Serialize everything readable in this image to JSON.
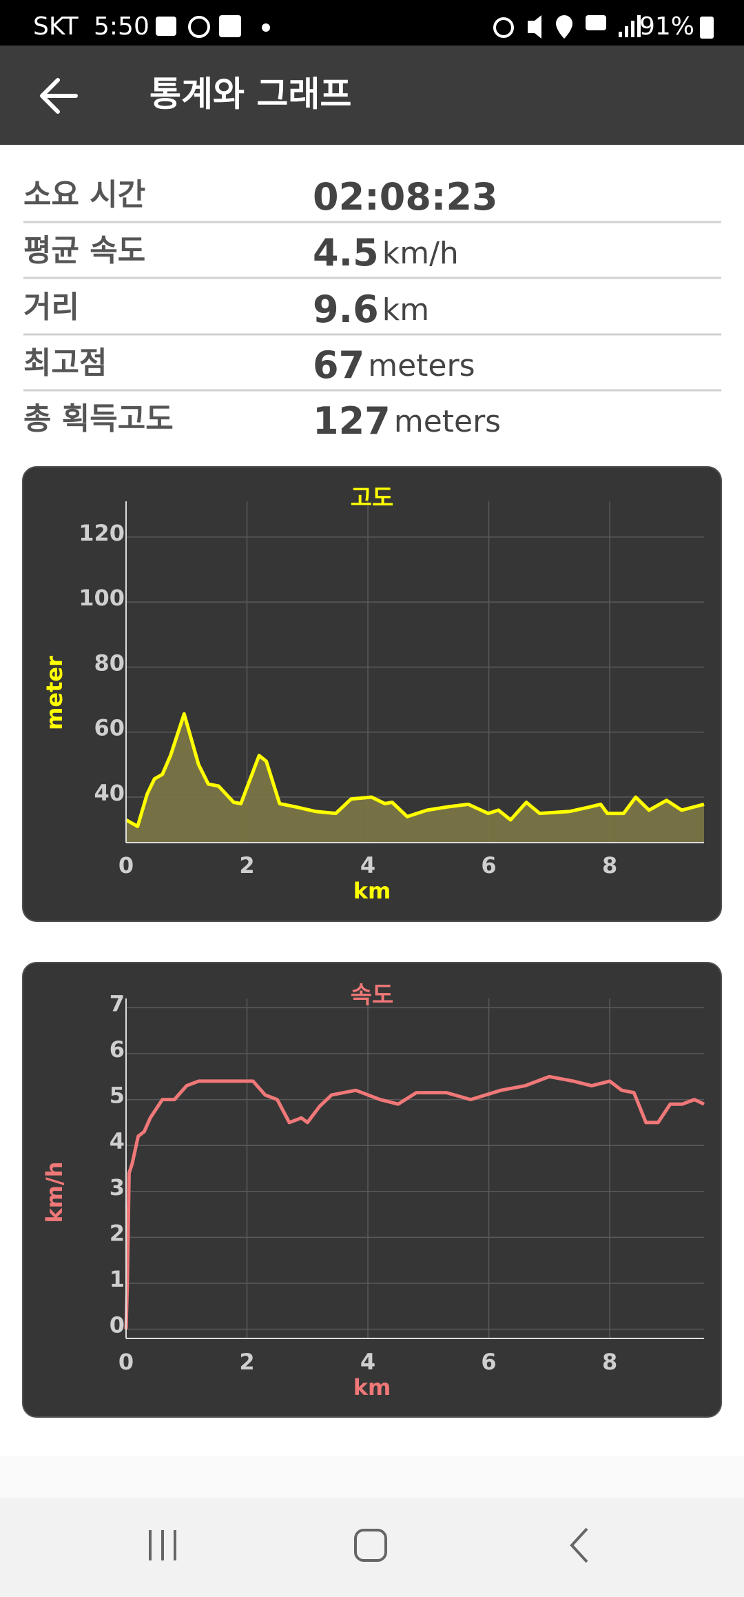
{
  "status_bar": {
    "carrier": "SKT",
    "time": "5:50",
    "battery": "91%"
  },
  "header": {
    "title": "통계와 그래프"
  },
  "stats": [
    {
      "label": "소요 시간",
      "value": "02:08:23"
    },
    {
      "label": "평균 속도",
      "value": 4.5,
      "unit": "km/h"
    },
    {
      "label": "거리",
      "value": 9.6,
      "unit": "km"
    },
    {
      "label": "최고점",
      "value": 67,
      "unit": "meters"
    },
    {
      "label": "총 획득고도",
      "value": 127,
      "unit": "meters"
    }
  ],
  "chart_data": [
    {
      "type": "line",
      "title": "고도",
      "x_label": "km",
      "y_label": "meter",
      "color": "#ffff00",
      "fill": "#7a7546",
      "grid": true,
      "x": [
        0,
        0.19,
        0.35,
        0.47,
        0.6,
        0.74,
        0.96,
        1.2,
        1.36,
        1.53,
        1.78,
        1.9,
        2.2,
        2.32,
        2.54,
        2.8,
        3.13,
        3.47,
        3.72,
        4.06,
        4.28,
        4.4,
        4.65,
        4.98,
        5.32,
        5.66,
        5.99,
        6.16,
        6.36,
        6.62,
        6.84,
        7.34,
        7.68,
        7.85,
        7.96,
        8.23,
        8.43,
        8.65,
        8.94,
        9.19,
        9.56
      ],
      "values": [
        33,
        31,
        41,
        45.6,
        47,
        53,
        65.6,
        50,
        44,
        43.4,
        38.4,
        38,
        52.8,
        51,
        38,
        37,
        35.6,
        35,
        39.4,
        40,
        38,
        38.4,
        34,
        36,
        37,
        37.8,
        35,
        36,
        33,
        38.4,
        35,
        35.6,
        37,
        37.8,
        35,
        35,
        40,
        36,
        39,
        36,
        37.8
      ],
      "xlim": [
        0,
        9.56
      ],
      "ylim": [
        26,
        131
      ],
      "xticks": [
        0,
        2,
        4,
        6,
        8
      ],
      "yticks": [
        40,
        60,
        80,
        100,
        120
      ]
    },
    {
      "type": "line",
      "title": "속도",
      "x_label": "km",
      "y_label": "km/h",
      "color": "#f07878",
      "grid": true,
      "x": [
        0,
        0.02,
        0.05,
        0.1,
        0.2,
        0.3,
        0.4,
        0.6,
        0.8,
        1.0,
        1.2,
        1.5,
        2.0,
        2.1,
        2.3,
        2.5,
        2.7,
        2.9,
        3.0,
        3.2,
        3.4,
        3.8,
        4.2,
        4.5,
        4.8,
        5.3,
        5.7,
        6.2,
        6.6,
        7.0,
        7.4,
        7.7,
        8.0,
        8.2,
        8.4,
        8.6,
        8.8,
        9.0,
        9.2,
        9.4,
        9.56
      ],
      "values": [
        0,
        1,
        3.4,
        3.6,
        4.2,
        4.3,
        4.6,
        5,
        5,
        5.3,
        5.4,
        5.4,
        5.4,
        5.4,
        5.1,
        5,
        4.5,
        4.6,
        4.5,
        4.85,
        5.1,
        5.2,
        5,
        4.9,
        5.15,
        5.15,
        5,
        5.2,
        5.3,
        5.5,
        5.4,
        5.3,
        5.4,
        5.2,
        5.15,
        4.5,
        4.5,
        4.9,
        4.9,
        5,
        4.9
      ],
      "xlim": [
        0,
        9.56
      ],
      "ylim": [
        -0.2,
        7.2
      ],
      "xticks": [
        0,
        2,
        4,
        6,
        8
      ],
      "yticks": [
        0,
        1,
        2,
        3,
        4,
        5,
        6,
        7
      ]
    }
  ]
}
